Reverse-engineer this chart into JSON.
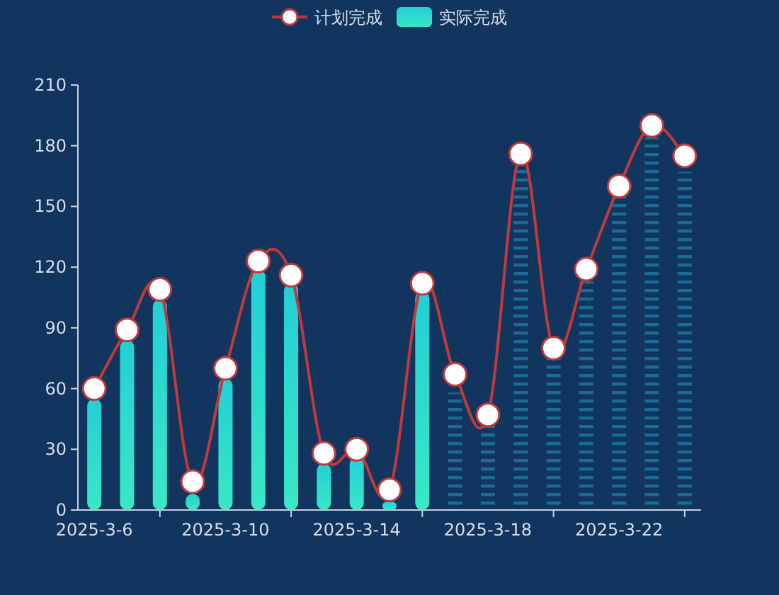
{
  "chart_data": {
    "type": "bar",
    "legend": "top",
    "categories": [
      "2025-3-6",
      null,
      null,
      null,
      "2025-3-10",
      null,
      null,
      null,
      "2025-3-14",
      null,
      null,
      null,
      "2025-3-18",
      null,
      null,
      null,
      "2025-3-22",
      null,
      null
    ],
    "ylim": [
      0,
      210
    ],
    "yticks": [
      0,
      30,
      60,
      90,
      120,
      150,
      180,
      210
    ],
    "grid": false,
    "series": [
      {
        "name": "计划完成",
        "type": "line",
        "color": "#c0393b",
        "marker": "circle",
        "values": [
          60,
          89,
          109,
          14,
          70,
          123,
          116,
          28,
          30,
          10,
          112,
          67,
          47,
          176,
          80,
          119,
          160,
          190,
          175
        ]
      },
      {
        "name": "实际完成",
        "color": "#22cfd6",
        "colors": [
          "#22cfd6",
          "#22cfd6",
          "#22cfd6",
          "#22cfd6",
          "#22cfd6",
          "#22cfd6",
          "#22cfd6",
          "#22cfd6",
          "#22cfd6",
          "#22cfd6",
          "#22cfd6",
          "#1b7aa3",
          "#1b7aa3",
          "#1b7aa3",
          "#1b7aa3",
          "#1b7aa3",
          "#1b7aa3",
          "#1b7aa3",
          "#1b7aa3"
        ],
        "values": [
          55,
          84,
          104,
          8,
          65,
          119,
          112,
          23,
          26,
          4,
          108,
          58,
          42,
          171,
          75,
          113,
          155,
          184,
          167
        ]
      }
    ]
  }
}
